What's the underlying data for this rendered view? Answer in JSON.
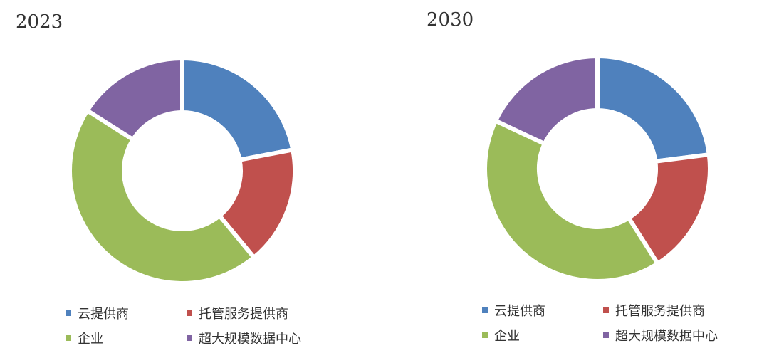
{
  "colors": {
    "cloud": "#4F81BD",
    "hosting": "#C0504D",
    "enterprise": "#9BBB59",
    "hyperscale": "#8064A2"
  },
  "chart_data": [
    {
      "type": "pie",
      "title": "2023",
      "categories": [
        "云提供商",
        "托管服务提供商",
        "企业",
        "超大规模数据中心"
      ],
      "values": [
        22,
        17,
        45,
        16
      ],
      "legend": "bottom"
    },
    {
      "type": "pie",
      "title": "2030",
      "categories": [
        "云提供商",
        "托管服务提供商",
        "企业",
        "超大规模数据中心"
      ],
      "values": [
        23,
        18,
        41,
        18
      ],
      "legend": "bottom"
    }
  ]
}
